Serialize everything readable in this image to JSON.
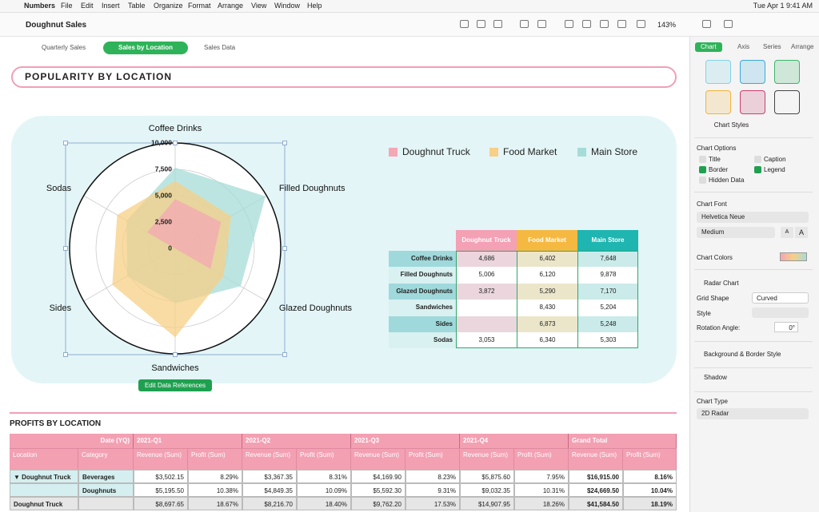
{
  "menu_bar": {
    "app": "Numbers",
    "items": [
      "File",
      "Edit",
      "Insert",
      "Table",
      "Organize",
      "Format",
      "Arrange",
      "View",
      "Window",
      "Help"
    ],
    "clock": "Tue Apr 1  9:41 AM"
  },
  "toolbar": {
    "document_title": "Doughnut Sales",
    "zoom": "143%"
  },
  "sheet_tabs": {
    "tabs": [
      "Quarterly Sales",
      "Sales by Location",
      "Sales Data"
    ],
    "active": 1
  },
  "sheet_title": "POPULARITY BY LOCATION",
  "chart_data": {
    "type": "radar",
    "grid_shape": "curved",
    "legend": "top",
    "categories": [
      "Coffee Drinks",
      "Filled Doughnuts",
      "Glazed Doughnuts",
      "Sandwiches",
      "Sides",
      "Sodas"
    ],
    "series": [
      {
        "name": "Doughnut Truck",
        "color": "#f4a7b4",
        "values": [
          4686,
          5006,
          3872,
          null,
          null,
          3053
        ],
        "value_labels": [
          "4,686",
          "5,006",
          "3,872",
          null,
          null,
          "3,053"
        ]
      },
      {
        "name": "Food Market",
        "color": "#f7cf86",
        "values": [
          6402,
          6120,
          5290,
          8430,
          6873,
          6340
        ],
        "value_labels": [
          "6,402",
          "6,120",
          "5,290",
          "8,430",
          "6,873",
          "6,340"
        ]
      },
      {
        "name": "Main Store",
        "color": "#a6dcd8",
        "values": [
          7648,
          9878,
          7170,
          5204,
          5248,
          5303
        ],
        "value_labels": [
          "7,648",
          "9,878",
          "7,170",
          "5,204",
          "5,248",
          "5,303"
        ]
      }
    ],
    "ylim": [
      0,
      10000
    ],
    "yticks": [
      0,
      {
        "value": 2500,
        "label": "2,500"
      },
      {
        "value": 5000,
        "label": "5,000"
      },
      {
        "value": 7500,
        "label": "7,500"
      },
      {
        "value": 10000,
        "label": "10,000"
      }
    ]
  },
  "edit_button": "Edit Data References",
  "profits_table": {
    "title": "PROFITS BY LOCATION",
    "header_row": [
      "Date (YQ)",
      "2021-Q1",
      "2021-Q2",
      "2021-Q3",
      "2021-Q4",
      "Grand Total"
    ],
    "subheader_row": [
      "Location",
      "Category",
      "Revenue (Sum)",
      "Profit (Sum)",
      "Revenue (Sum)",
      "Profit (Sum)",
      "Revenue (Sum)",
      "Profit (Sum)",
      "Revenue (Sum)",
      "Profit (Sum)",
      "Revenue (Sum)",
      "Profit (Sum)"
    ],
    "rows": [
      [
        "▼ Doughnut Truck",
        "Beverages",
        "$3,502.15",
        "8.29%",
        "$3,367.35",
        "8.31%",
        "$4,169.90",
        "8.23%",
        "$5,875.60",
        "7.95%",
        "$16,915.00",
        "8.16%"
      ],
      [
        null,
        "Doughnuts",
        "$5,195.50",
        "10.38%",
        "$4,849.35",
        "10.09%",
        "$5,592.30",
        "9.31%",
        "$9,032.35",
        "10.31%",
        "$24,669.50",
        "10.04%"
      ],
      [
        "Doughnut Truck",
        null,
        "$8,697.65",
        "18.67%",
        "$8,216.70",
        "18.40%",
        "$9,762.20",
        "17.53%",
        "$14,907.95",
        "18.26%",
        "$41,584.50",
        "18.19%"
      ]
    ]
  },
  "inspector": {
    "tabs": [
      "Chart",
      "Axis",
      "Series",
      "Arrange"
    ],
    "active": 0,
    "chart_styles": "Chart Styles",
    "chart_options": {
      "heading": "Chart Options",
      "checkboxes": [
        {
          "label": "Title",
          "checked": false
        },
        {
          "label": "Caption",
          "checked": false
        },
        {
          "label": "Border",
          "checked": true
        },
        {
          "label": "Legend",
          "checked": true
        },
        {
          "label": "Hidden Data",
          "checked": false
        }
      ]
    },
    "chart_font": {
      "heading": "Chart Font",
      "font": "Helvetica Neue",
      "weight": "Medium",
      "smaller": "A",
      "larger": "A"
    },
    "chart_colors": "Chart Colors",
    "radar_chart": {
      "heading": "Radar Chart",
      "grid_shape_label": "Grid Shape",
      "grid_shape": "Curved",
      "style_label": "Style",
      "rotation_label": "Rotation Angle:",
      "rotation": "0°"
    },
    "background_border": "Background & Border Style",
    "shadow": "Shadow",
    "chart_type": {
      "heading": "Chart Type",
      "value": "2D Radar"
    }
  }
}
